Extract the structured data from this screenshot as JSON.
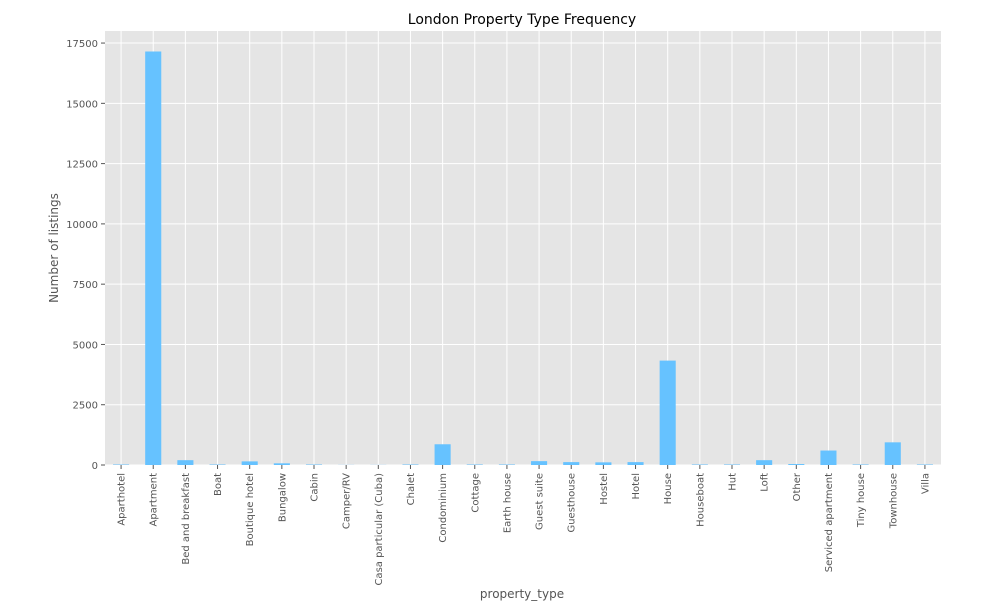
{
  "chart_data": {
    "type": "bar",
    "title": "London Property Type Frequency",
    "xlabel": "property_type",
    "ylabel": "Number of listings",
    "ylim": [
      0,
      18000
    ],
    "yticks": [
      0,
      2500,
      5000,
      7500,
      10000,
      12500,
      15000,
      17500
    ],
    "grid": true,
    "legend": "none",
    "categories": [
      "Aparthotel",
      "Apartment",
      "Bed and breakfast",
      "Boat",
      "Boutique hotel",
      "Bungalow",
      "Cabin",
      "Camper/RV",
      "Casa particular (Cuba)",
      "Chalet",
      "Condominium",
      "Cottage",
      "Earth house",
      "Guest suite",
      "Guesthouse",
      "Hostel",
      "Hotel",
      "House",
      "Houseboat",
      "Hut",
      "Loft",
      "Other",
      "Serviced apartment",
      "Tiny house",
      "Townhouse",
      "Villa"
    ],
    "values": [
      20,
      17150,
      200,
      20,
      150,
      70,
      20,
      5,
      5,
      20,
      860,
      20,
      20,
      160,
      120,
      110,
      120,
      4330,
      20,
      20,
      200,
      40,
      600,
      20,
      940,
      20
    ],
    "colors": {
      "bar": "#66c2ff",
      "plot_bg": "#e5e5e5",
      "grid": "#ffffff",
      "text": "#555555",
      "title": "#000000"
    }
  }
}
